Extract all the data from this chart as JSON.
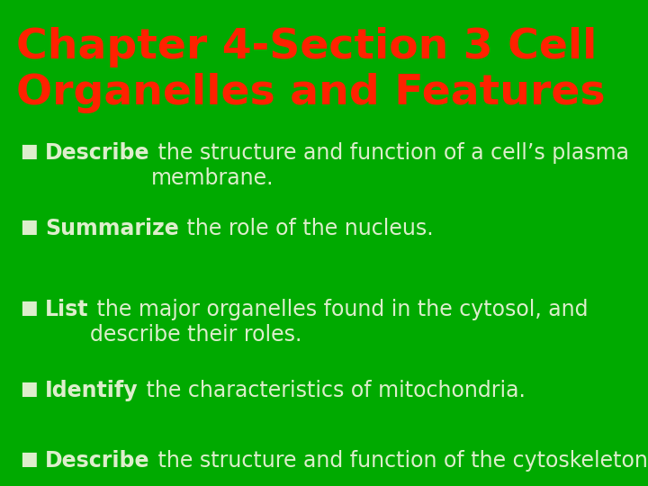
{
  "title_line1": "Chapter 4-Section 3 Cell",
  "title_line2": "Organelles and Features",
  "title_color": "#ff2200",
  "background_color": "#00aa00",
  "text_color": "#ddeecc",
  "bold_color": "#eeffcc",
  "bullet_marker": "■",
  "bullets": [
    {
      "bold": "Describe",
      "rest": " the structure and function of a cell’s plasma\nmembrane."
    },
    {
      "bold": "Summarize",
      "rest": " the role of the nucleus."
    },
    {
      "bold": "List",
      "rest": " the major organelles found in the cytosol, and\ndescribe their roles."
    },
    {
      "bold": "Identify",
      "rest": " the characteristics of mitochondria."
    },
    {
      "bold": "Describe",
      "rest": " the structure and function of the cytoskeleton."
    }
  ],
  "title_fontsize": 34,
  "bullet_fontsize": 17,
  "fig_width": 7.2,
  "fig_height": 5.4,
  "dpi": 100
}
